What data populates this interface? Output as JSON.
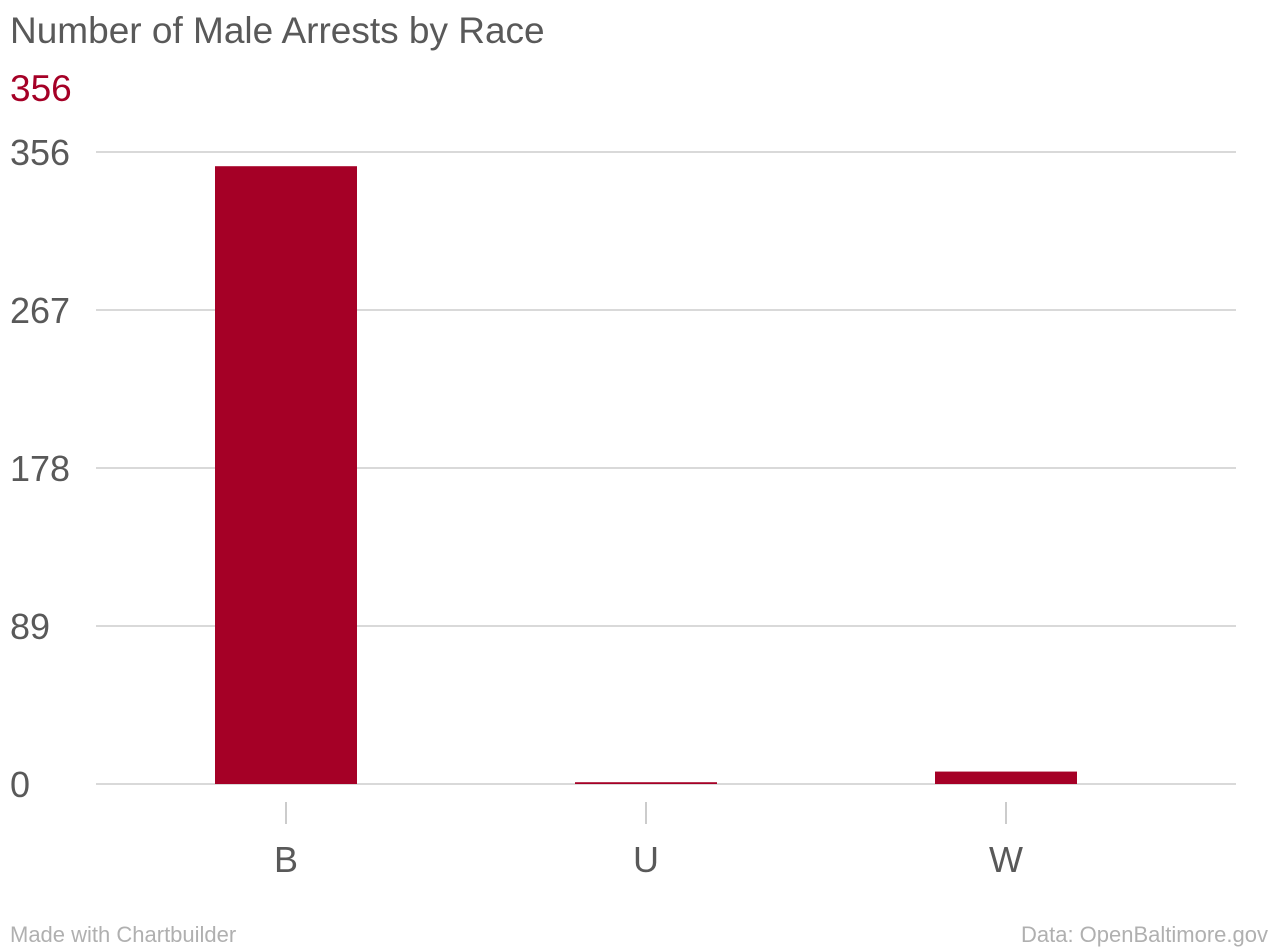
{
  "chart_data": {
    "type": "bar",
    "title": "Number of Male Arrests by Race",
    "highlight_value": "356",
    "categories": [
      "B",
      "U",
      "W"
    ],
    "values": [
      348,
      1,
      7
    ],
    "ylim": [
      0,
      356
    ],
    "yticks": [
      "0",
      "89",
      "178",
      "267",
      "356"
    ],
    "grid": true,
    "bar_color": "#a50026",
    "xlabel": "",
    "ylabel": ""
  },
  "footer": {
    "credit": "Made with Chartbuilder",
    "source": "Data: OpenBaltimore.gov"
  }
}
